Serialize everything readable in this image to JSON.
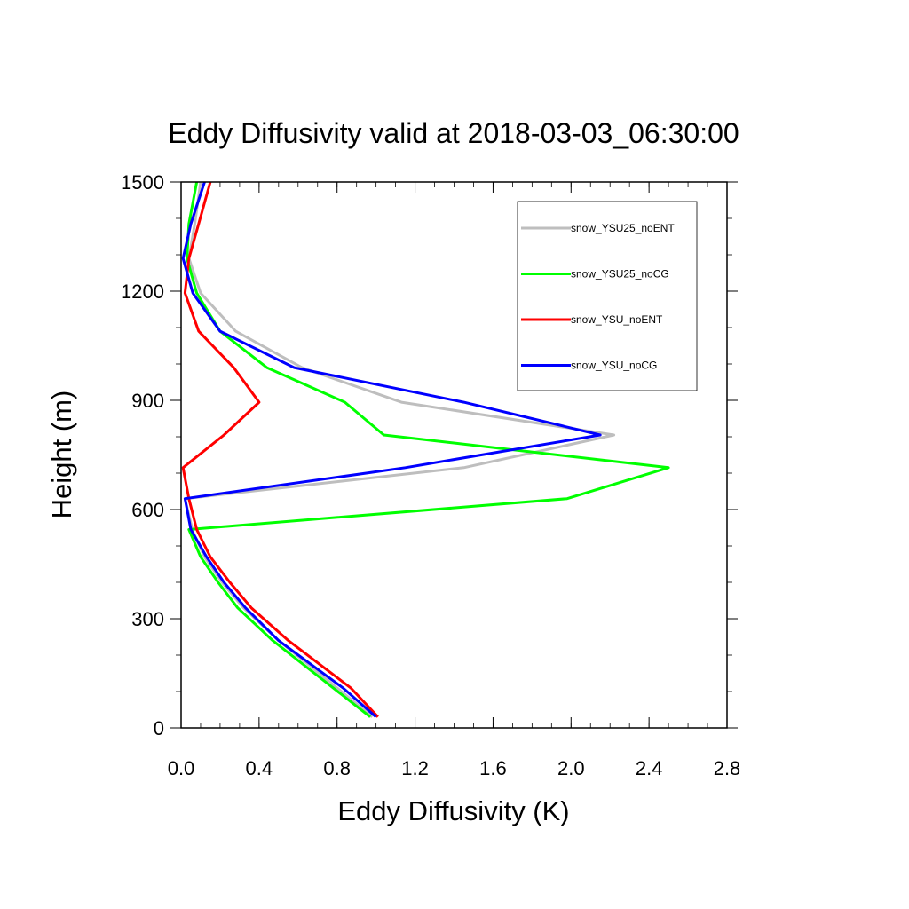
{
  "chart_data": {
    "type": "line",
    "title": "Eddy Diffusivity valid at 2018-03-03_06:30:00",
    "xlabel": "Eddy Diffusivity (K)",
    "ylabel": "Height (m)",
    "xlim": [
      0,
      2.8
    ],
    "ylim": [
      0,
      1500
    ],
    "x_ticks": [
      0.0,
      0.4,
      0.8,
      1.2,
      1.6,
      2.0,
      2.4,
      2.8
    ],
    "x_tick_labels": [
      "0.0",
      "0.4",
      "0.8",
      "1.2",
      "1.6",
      "2.0",
      "2.4",
      "2.8"
    ],
    "y_ticks": [
      0,
      300,
      600,
      900,
      1200,
      1500
    ],
    "y_tick_labels": [
      "0",
      "300",
      "600",
      "900",
      "1200",
      "1500"
    ],
    "grid": false,
    "legend_position": "top-right",
    "series": [
      {
        "name": "snow_YSU25_noENT",
        "color": "#bebebe",
        "points": [
          [
            0.98,
            30
          ],
          [
            0.8,
            110
          ],
          [
            0.5,
            240
          ],
          [
            0.32,
            330
          ],
          [
            0.21,
            400
          ],
          [
            0.12,
            470
          ],
          [
            0.06,
            540
          ],
          [
            0.02,
            630
          ],
          [
            1.45,
            715
          ],
          [
            2.22,
            805
          ],
          [
            1.13,
            895
          ],
          [
            0.62,
            990
          ],
          [
            0.28,
            1090
          ],
          [
            0.1,
            1195
          ],
          [
            0.04,
            1290
          ],
          [
            0.07,
            1385
          ],
          [
            0.1,
            1500
          ]
        ]
      },
      {
        "name": "snow_YSU25_noCG",
        "color": "#00ff00",
        "points": [
          [
            0.97,
            30
          ],
          [
            0.78,
            110
          ],
          [
            0.47,
            240
          ],
          [
            0.29,
            330
          ],
          [
            0.19,
            400
          ],
          [
            0.1,
            470
          ],
          [
            0.04,
            545
          ],
          [
            1.98,
            630
          ],
          [
            2.5,
            715
          ],
          [
            1.04,
            805
          ],
          [
            0.84,
            895
          ],
          [
            0.44,
            990
          ],
          [
            0.2,
            1090
          ],
          [
            0.08,
            1195
          ],
          [
            0.03,
            1290
          ],
          [
            0.04,
            1385
          ],
          [
            0.08,
            1500
          ]
        ]
      },
      {
        "name": "snow_YSU_noENT",
        "color": "#ff0000",
        "points": [
          [
            1.01,
            30
          ],
          [
            0.87,
            110
          ],
          [
            0.55,
            240
          ],
          [
            0.36,
            330
          ],
          [
            0.25,
            400
          ],
          [
            0.15,
            470
          ],
          [
            0.08,
            545
          ],
          [
            0.04,
            630
          ],
          [
            0.01,
            715
          ],
          [
            0.22,
            805
          ],
          [
            0.4,
            895
          ],
          [
            0.27,
            990
          ],
          [
            0.09,
            1090
          ],
          [
            0.02,
            1195
          ],
          [
            0.04,
            1290
          ],
          [
            0.09,
            1385
          ],
          [
            0.15,
            1500
          ]
        ]
      },
      {
        "name": "snow_YSU_noCG",
        "color": "#0000ff",
        "points": [
          [
            1.0,
            30
          ],
          [
            0.83,
            110
          ],
          [
            0.5,
            240
          ],
          [
            0.33,
            330
          ],
          [
            0.22,
            400
          ],
          [
            0.13,
            470
          ],
          [
            0.05,
            545
          ],
          [
            0.02,
            630
          ],
          [
            1.15,
            715
          ],
          [
            2.15,
            805
          ],
          [
            1.45,
            895
          ],
          [
            0.58,
            990
          ],
          [
            0.2,
            1090
          ],
          [
            0.06,
            1195
          ],
          [
            0.01,
            1290
          ],
          [
            0.05,
            1385
          ],
          [
            0.12,
            1500
          ]
        ]
      }
    ]
  }
}
